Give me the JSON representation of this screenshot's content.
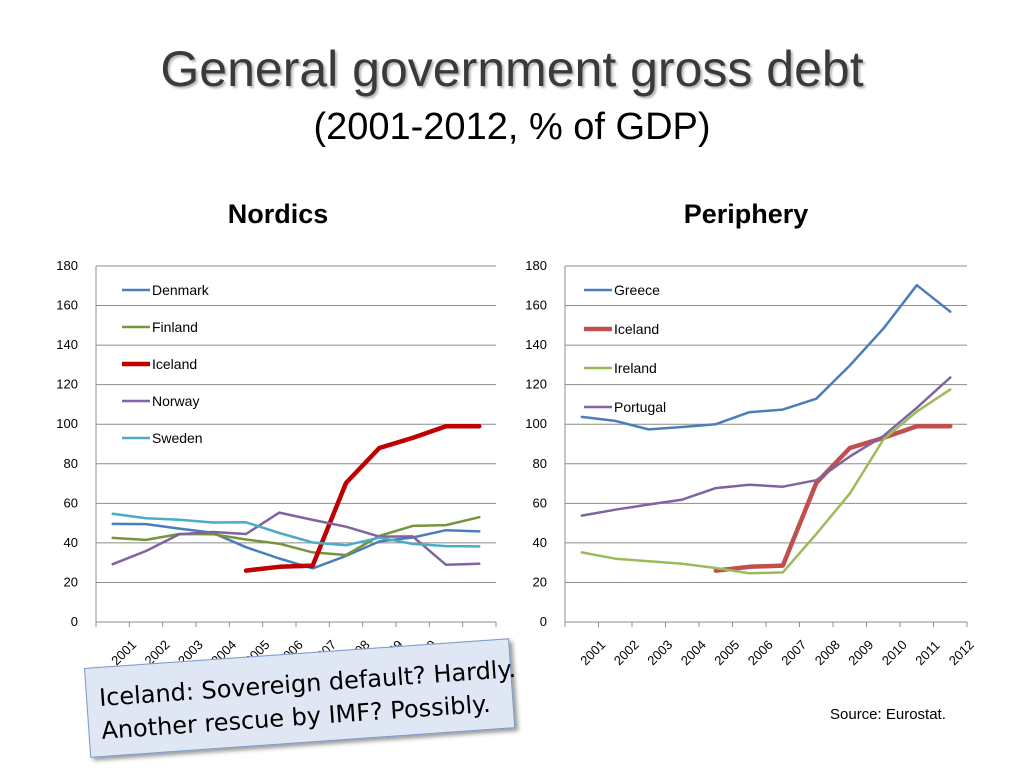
{
  "page": {
    "title": "General government gross debt",
    "subtitle": "(2001-2012, % of GDP)",
    "callout_line1": "Iceland: Sovereign default? Hardly.",
    "callout_line2": "Another rescue by IMF? Possibly.",
    "source": "Source: Eurostat."
  },
  "chart_data": [
    {
      "type": "line",
      "title": "Nordics",
      "categories": [
        "2001",
        "2002",
        "2003",
        "2004",
        "2005",
        "2006",
        "2007",
        "2008",
        "2009",
        "2010",
        "2011",
        "2012"
      ],
      "ylim": [
        0,
        180
      ],
      "yticks": [
        0,
        20,
        40,
        60,
        80,
        100,
        120,
        140,
        160,
        180
      ],
      "grid": true,
      "legend": "top-left",
      "series": [
        {
          "name": "Denmark",
          "color": "#4a7ebb",
          "width": 2.5,
          "values": [
            49.6,
            49.5,
            47.2,
            45.1,
            37.8,
            32.1,
            27.1,
            33.4,
            40.7,
            42.7,
            46.4,
            45.8
          ]
        },
        {
          "name": "Finland",
          "color": "#77933c",
          "width": 2.5,
          "values": [
            42.5,
            41.5,
            44.5,
            44.4,
            41.7,
            39.6,
            35.2,
            33.9,
            43.5,
            48.6,
            49.0,
            53.0
          ]
        },
        {
          "name": "Iceland",
          "color": "#c00000",
          "width": 4.5,
          "values": [
            null,
            null,
            null,
            null,
            26.0,
            27.9,
            28.5,
            70.3,
            88.0,
            93.1,
            99.0,
            99.0
          ]
        },
        {
          "name": "Norway",
          "color": "#8064a2",
          "width": 2.5,
          "values": [
            29.2,
            35.9,
            44.4,
            45.5,
            44.5,
            55.3,
            51.6,
            48.2,
            43.2,
            43.3,
            28.9,
            29.5
          ]
        },
        {
          "name": "Sweden",
          "color": "#4bacc6",
          "width": 2.5,
          "values": [
            54.7,
            52.5,
            51.7,
            50.3,
            50.4,
            45.0,
            40.2,
            38.8,
            42.6,
            39.5,
            38.4,
            38.2
          ]
        }
      ]
    },
    {
      "type": "line",
      "title": "Periphery",
      "categories": [
        "2001",
        "2002",
        "2003",
        "2004",
        "2005",
        "2006",
        "2007",
        "2008",
        "2009",
        "2010",
        "2011",
        "2012"
      ],
      "ylim": [
        0,
        180
      ],
      "yticks": [
        0,
        20,
        40,
        60,
        80,
        100,
        120,
        140,
        160,
        180
      ],
      "grid": true,
      "legend": "top-left",
      "series": [
        {
          "name": "Greece",
          "color": "#4a7ebb",
          "width": 2.5,
          "values": [
            103.7,
            101.7,
            97.4,
            98.6,
            100.0,
            106.1,
            107.4,
            112.9,
            129.7,
            148.3,
            170.3,
            156.9
          ]
        },
        {
          "name": "Iceland",
          "color": "#c0504d",
          "width": 4.5,
          "values": [
            null,
            null,
            null,
            null,
            26.0,
            27.9,
            28.5,
            70.3,
            88.0,
            93.1,
            99.0,
            99.0
          ]
        },
        {
          "name": "Ireland",
          "color": "#9bbb59",
          "width": 2.5,
          "values": [
            35.2,
            32.0,
            30.7,
            29.5,
            27.3,
            24.6,
            25.1,
            44.5,
            64.9,
            92.2,
            106.4,
            117.6
          ]
        },
        {
          "name": "Portugal",
          "color": "#8064a2",
          "width": 2.5,
          "values": [
            53.8,
            56.8,
            59.4,
            61.9,
            67.7,
            69.4,
            68.4,
            71.7,
            83.7,
            94.0,
            108.3,
            123.6
          ]
        }
      ]
    }
  ]
}
